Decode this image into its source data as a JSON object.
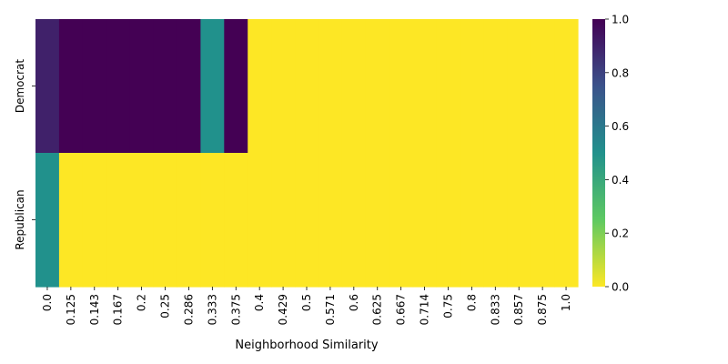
{
  "chart_data": {
    "type": "heatmap",
    "xlabel": "Neighborhood Similarity",
    "ylabel": "",
    "x_categories": [
      "0.0",
      "0.125",
      "0.143",
      "0.167",
      "0.2",
      "0.25",
      "0.286",
      "0.333",
      "0.375",
      "0.4",
      "0.429",
      "0.5",
      "0.571",
      "0.6",
      "0.625",
      "0.667",
      "0.714",
      "0.75",
      "0.8",
      "0.833",
      "0.857",
      "0.875",
      "1.0"
    ],
    "y_categories": [
      "Democrat",
      "Republican"
    ],
    "values": [
      [
        0.9,
        1,
        1,
        1,
        1,
        1,
        1,
        0.5,
        1,
        0,
        0,
        0,
        0,
        0,
        0,
        0,
        0,
        0,
        0,
        0,
        0,
        0,
        0
      ],
      [
        0.5,
        0,
        0,
        0,
        0,
        0,
        0,
        0,
        0,
        0,
        0,
        0,
        0,
        0,
        0,
        0,
        0,
        0,
        0,
        0,
        0,
        0,
        0
      ]
    ],
    "colorbar": {
      "colormap": "viridis_r",
      "range": [
        0.0,
        1.0
      ],
      "tick_labels": [
        "0.0",
        "0.2",
        "0.4",
        "0.6",
        "0.8",
        "1.0"
      ]
    }
  }
}
